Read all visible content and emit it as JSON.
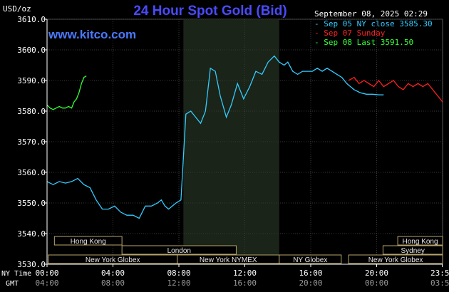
{
  "title": "24 Hour Spot Gold (Bid)",
  "unit_label": "USD/oz",
  "site": "www.kitco.com",
  "timestamp": "September 08, 2025 02:29",
  "legend": [
    {
      "label": "Sep 05 NY close 3585.30",
      "color": "#33ccff"
    },
    {
      "label": "Sep 07 Sunday",
      "color": "#ff2020"
    },
    {
      "label": "Sep 08 Last 3591.50",
      "color": "#33ff33"
    }
  ],
  "bottom_labels": {
    "ny_time": "NY Time",
    "gmt": "GMT"
  },
  "sessions": [
    {
      "label": "Hong Kong",
      "row": 0,
      "start": 0.6,
      "end": 6.1
    },
    {
      "label": "London",
      "row": 1,
      "start": 6.1,
      "end": 15.4
    },
    {
      "label": "New York Globex",
      "row": 2,
      "start": 0.1,
      "end": 10.6
    },
    {
      "label": "New York NYMEX",
      "row": 2,
      "start": 10.6,
      "end": 18.9
    },
    {
      "label": "NY Globex",
      "row": 2,
      "start": 18.9,
      "end": 23.95
    },
    {
      "label": "Hong Kong",
      "row": 0,
      "start": 28.55,
      "end": 32.2
    },
    {
      "label": "Sydney",
      "row": 1,
      "start": 27.35,
      "end": 32.2
    },
    {
      "label": "New York Globex",
      "row": 2,
      "start": 24.55,
      "end": 32.2
    }
  ],
  "shaded_region": {
    "start": 11.1,
    "end": 18.9
  },
  "chart_data": {
    "type": "line",
    "title": "24 Hour Spot Gold (Bid)",
    "ylabel": "USD/oz",
    "ylim": [
      3530,
      3610
    ],
    "yticks": [
      "3530.0",
      "3540.0",
      "3550.0",
      "3560.0",
      "3570.0",
      "3580.0",
      "3590.0",
      "3600.0",
      "3610.0"
    ],
    "xticks": [
      {
        "ny": "00:00",
        "gmt": "04:00"
      },
      {
        "ny": "04:00",
        "gmt": "08:00"
      },
      {
        "ny": "08:00",
        "gmt": "12:00"
      },
      {
        "ny": "12:00",
        "gmt": "16:00"
      },
      {
        "ny": "16:00",
        "gmt": "20:00"
      },
      {
        "ny": "20:00",
        "gmt": "00:00"
      },
      {
        "ny": "23:59",
        "gmt": "03:59"
      }
    ],
    "x_unit": "hours from 00:00 NY time (extended to 32 hours)",
    "series": [
      {
        "name": "Sep 05 NY close 3585.30",
        "color": "#33ccff",
        "x": [
          0,
          0.5,
          1.0,
          1.5,
          2.0,
          2.5,
          3.0,
          3.5,
          4.0,
          4.5,
          5.0,
          5.5,
          6.0,
          6.5,
          7.0,
          7.5,
          8.0,
          8.5,
          9.0,
          9.3,
          9.6,
          9.9,
          10.2,
          10.5,
          10.9,
          11.3,
          11.7,
          12.1,
          12.5,
          12.9,
          13.3,
          13.7,
          14.1,
          14.6,
          15.0,
          15.5,
          16.0,
          16.5,
          17.0,
          17.5,
          18.0,
          18.5,
          18.9,
          19.3,
          19.6,
          20.0,
          20.4,
          20.8,
          21.2,
          21.6,
          22.0,
          22.4,
          22.8,
          23.2,
          23.6,
          24.0,
          24.4,
          24.7,
          25.0,
          25.5,
          26.0,
          26.5,
          27.0,
          27.4
        ],
        "y": [
          3557,
          3556,
          3557,
          3556.5,
          3557,
          3558,
          3556,
          3555,
          3551,
          3548,
          3548,
          3549,
          3547,
          3546,
          3546,
          3545,
          3549,
          3549,
          3550,
          3551,
          3549,
          3548,
          3549,
          3550,
          3551,
          3579,
          3580,
          3578,
          3576,
          3580,
          3594,
          3593,
          3585,
          3578,
          3582,
          3589,
          3584,
          3588,
          3593,
          3592,
          3596,
          3598,
          3596,
          3595,
          3596,
          3593,
          3592,
          3593,
          3593,
          3593,
          3594,
          3593,
          3594,
          3593,
          3592,
          3591,
          3589,
          3588,
          3587,
          3586,
          3585.5,
          3585.5,
          3585.3,
          3585.3
        ]
      },
      {
        "name": "Sep 07 Sunday",
        "color": "#ff2020",
        "x": [
          24.55,
          25.0,
          25.4,
          25.8,
          26.2,
          26.6,
          27.0,
          27.4,
          27.8,
          28.2,
          28.6,
          29.0,
          29.4,
          29.8,
          30.2,
          30.6,
          31.0,
          31.4,
          31.8,
          32.2
        ],
        "y": [
          3590,
          3591,
          3589,
          3590,
          3589,
          3588,
          3590,
          3588,
          3589,
          3590,
          3588,
          3587,
          3589,
          3588,
          3589,
          3588,
          3589,
          3587,
          3585,
          3583
        ]
      },
      {
        "name": "Sep 08 Last 3591.50",
        "color": "#33ff33",
        "x": [
          0,
          0.25,
          0.5,
          0.75,
          1.0,
          1.25,
          1.5,
          1.75,
          2.0,
          2.2,
          2.4,
          2.6,
          2.8,
          3.0,
          3.2
        ],
        "y": [
          3582,
          3581,
          3580.5,
          3581,
          3581.5,
          3581,
          3581,
          3581.5,
          3581,
          3583,
          3584,
          3586,
          3589,
          3591,
          3591.5
        ]
      }
    ]
  }
}
